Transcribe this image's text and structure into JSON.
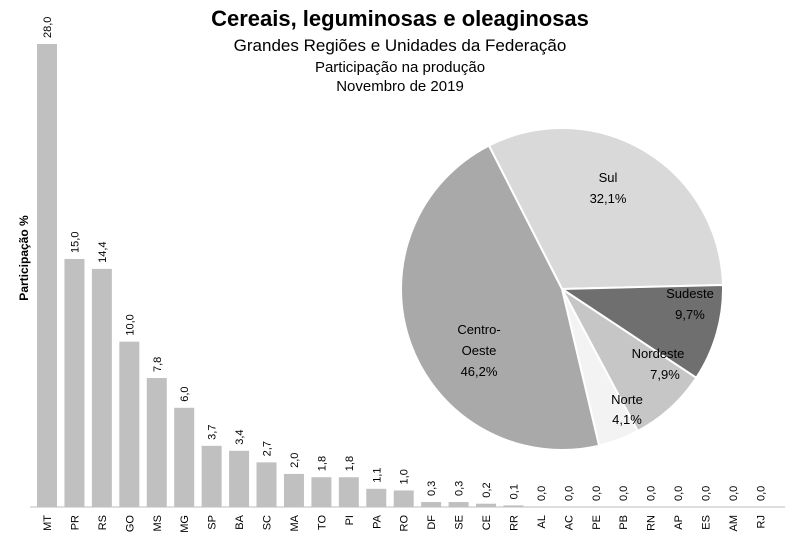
{
  "header": {
    "title": "Cereais, leguminosas e oleaginosas",
    "subtitle1": "Grandes Regiões e Unidades da Federação",
    "subtitle2": "Participação na produção",
    "subtitle3": "Novembro de 2019"
  },
  "chart_data": [
    {
      "type": "bar",
      "ylabel": "Participação %",
      "ylim": [
        0,
        28
      ],
      "grid": false,
      "bar_color": "#c0c0c0",
      "categories": [
        "MT",
        "PR",
        "RS",
        "GO",
        "MS",
        "MG",
        "SP",
        "BA",
        "SC",
        "MA",
        "TO",
        "PI",
        "PA",
        "RO",
        "DF",
        "SE",
        "CE",
        "RR",
        "AL",
        "AC",
        "PE",
        "PB",
        "RN",
        "AP",
        "ES",
        "AM",
        "RJ"
      ],
      "values": [
        28.0,
        15.0,
        14.4,
        10.0,
        7.8,
        6.0,
        3.7,
        3.4,
        2.7,
        2.0,
        1.8,
        1.8,
        1.1,
        1.0,
        0.3,
        0.3,
        0.2,
        0.1,
        0.0,
        0.0,
        0.0,
        0.0,
        0.0,
        0.0,
        0.0,
        0.0,
        0.0
      ],
      "value_labels": [
        "28,0",
        "15,0",
        "14,4",
        "10,0",
        "7,8",
        "6,0",
        "3,7",
        "3,4",
        "2,7",
        "2,0",
        "1,8",
        "1,8",
        "1,1",
        "1,0",
        "0,3",
        "0,3",
        "0,2",
        "0,1",
        "0,0",
        "0,0",
        "0,0",
        "0,0",
        "0,0",
        "0,0",
        "0,0",
        "0,0",
        "0,0"
      ]
    },
    {
      "type": "pie",
      "slices": [
        {
          "label": "Sul",
          "value": 32.1,
          "value_label": "32,1%",
          "color": "#d9d9d9"
        },
        {
          "label": "Sudeste",
          "value": 9.7,
          "value_label": "9,7%",
          "color": "#6f6f6f"
        },
        {
          "label": "Nordeste",
          "value": 7.9,
          "value_label": "7,9%",
          "color": "#c6c6c6"
        },
        {
          "label": "Norte",
          "value": 4.1,
          "value_label": "4,1%",
          "color": "#f3f3f3"
        },
        {
          "label": "Centro-Oeste",
          "value": 46.2,
          "value_label": "46,2%",
          "color": "#a9a9a9"
        }
      ]
    }
  ]
}
